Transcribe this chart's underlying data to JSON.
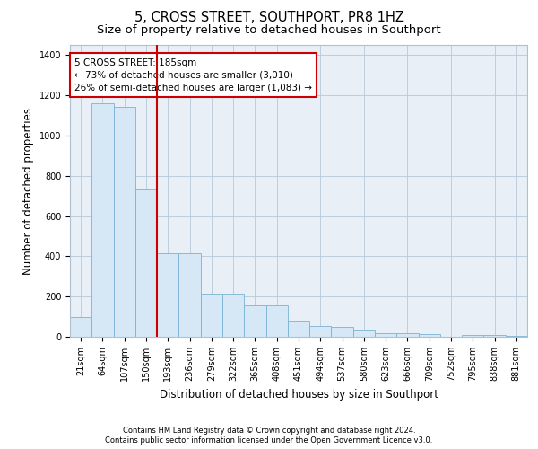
{
  "title": "5, CROSS STREET, SOUTHPORT, PR8 1HZ",
  "subtitle": "Size of property relative to detached houses in Southport",
  "xlabel": "Distribution of detached houses by size in Southport",
  "ylabel": "Number of detached properties",
  "bar_color": "#d6e8f5",
  "bar_edge_color": "#7ab4d4",
  "categories": [
    "21sqm",
    "64sqm",
    "107sqm",
    "150sqm",
    "193sqm",
    "236sqm",
    "279sqm",
    "322sqm",
    "365sqm",
    "408sqm",
    "451sqm",
    "494sqm",
    "537sqm",
    "580sqm",
    "623sqm",
    "666sqm",
    "709sqm",
    "752sqm",
    "795sqm",
    "838sqm",
    "881sqm"
  ],
  "values": [
    100,
    1160,
    1140,
    730,
    415,
    415,
    215,
    215,
    155,
    155,
    75,
    55,
    50,
    30,
    20,
    20,
    15,
    0,
    10,
    10,
    5
  ],
  "ylim": [
    0,
    1450
  ],
  "yticks": [
    0,
    200,
    400,
    600,
    800,
    1000,
    1200,
    1400
  ],
  "vline_index": 3.5,
  "vline_color": "#cc0000",
  "annotation_text": "5 CROSS STREET: 185sqm\n← 73% of detached houses are smaller (3,010)\n26% of semi-detached houses are larger (1,083) →",
  "annotation_box_color": "#ffffff",
  "annotation_box_edge": "#cc0000",
  "footnote1": "Contains HM Land Registry data © Crown copyright and database right 2024.",
  "footnote2": "Contains public sector information licensed under the Open Government Licence v3.0.",
  "title_fontsize": 10.5,
  "subtitle_fontsize": 9.5,
  "tick_fontsize": 7,
  "ylabel_fontsize": 8.5,
  "xlabel_fontsize": 8.5,
  "annot_fontsize": 7.5,
  "footnote_fontsize": 6.0,
  "bg_color": "#e8eff6"
}
